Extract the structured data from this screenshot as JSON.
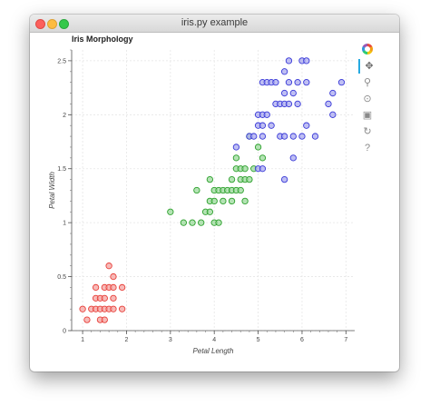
{
  "window": {
    "title": "iris.py example"
  },
  "plot": {
    "title": "Iris Morphology"
  },
  "toolbar": {
    "logo_icon": "bokeh-logo-icon",
    "tools": [
      {
        "name": "pan-tool",
        "glyph": "✥",
        "active": true
      },
      {
        "name": "box-zoom-tool",
        "glyph": "⚲",
        "active": false
      },
      {
        "name": "wheel-zoom-tool",
        "glyph": "⊙",
        "active": false
      },
      {
        "name": "save-tool",
        "glyph": "▣",
        "active": false
      },
      {
        "name": "reset-tool",
        "glyph": "↻",
        "active": false
      },
      {
        "name": "help-tool",
        "glyph": "?",
        "active": false
      }
    ]
  },
  "chart_data": {
    "type": "scatter",
    "xlabel": "Petal Length",
    "ylabel": "Petal Width",
    "xlim": [
      0.75,
      7.2
    ],
    "ylim": [
      0,
      2.6
    ],
    "x_ticks": [
      1,
      2,
      3,
      4,
      5,
      6,
      7
    ],
    "y_ticks": [
      0,
      0.5,
      1,
      1.5,
      2,
      2.5
    ],
    "x_tick_labels": [
      "1",
      "2",
      "3",
      "4",
      "5",
      "6",
      "7"
    ],
    "y_tick_labels": [
      "0",
      "0.5",
      "1",
      "1.5",
      "2",
      "2.5"
    ],
    "grid": true,
    "series": [
      {
        "color": "#e8403a",
        "fill": "#f4a3a0",
        "points": [
          [
            1.0,
            0.2
          ],
          [
            1.1,
            0.1
          ],
          [
            1.2,
            0.2
          ],
          [
            1.3,
            0.2
          ],
          [
            1.3,
            0.3
          ],
          [
            1.3,
            0.4
          ],
          [
            1.4,
            0.1
          ],
          [
            1.4,
            0.2
          ],
          [
            1.4,
            0.3
          ],
          [
            1.5,
            0.1
          ],
          [
            1.5,
            0.2
          ],
          [
            1.5,
            0.3
          ],
          [
            1.5,
            0.4
          ],
          [
            1.6,
            0.2
          ],
          [
            1.6,
            0.4
          ],
          [
            1.6,
            0.6
          ],
          [
            1.7,
            0.2
          ],
          [
            1.7,
            0.3
          ],
          [
            1.7,
            0.4
          ],
          [
            1.7,
            0.5
          ],
          [
            1.9,
            0.2
          ],
          [
            1.9,
            0.4
          ]
        ]
      },
      {
        "color": "#2ca02c",
        "fill": "#9bd99b",
        "points": [
          [
            3.0,
            1.1
          ],
          [
            3.3,
            1.0
          ],
          [
            3.5,
            1.0
          ],
          [
            3.6,
            1.3
          ],
          [
            3.7,
            1.0
          ],
          [
            3.8,
            1.1
          ],
          [
            3.9,
            1.1
          ],
          [
            3.9,
            1.2
          ],
          [
            3.9,
            1.4
          ],
          [
            4.0,
            1.0
          ],
          [
            4.0,
            1.2
          ],
          [
            4.0,
            1.3
          ],
          [
            4.1,
            1.0
          ],
          [
            4.1,
            1.3
          ],
          [
            4.2,
            1.2
          ],
          [
            4.2,
            1.3
          ],
          [
            4.3,
            1.3
          ],
          [
            4.4,
            1.2
          ],
          [
            4.4,
            1.3
          ],
          [
            4.4,
            1.4
          ],
          [
            4.5,
            1.3
          ],
          [
            4.5,
            1.5
          ],
          [
            4.5,
            1.6
          ],
          [
            4.6,
            1.3
          ],
          [
            4.6,
            1.4
          ],
          [
            4.6,
            1.5
          ],
          [
            4.7,
            1.2
          ],
          [
            4.7,
            1.4
          ],
          [
            4.7,
            1.5
          ],
          [
            4.8,
            1.4
          ],
          [
            4.8,
            1.8
          ],
          [
            4.9,
            1.5
          ],
          [
            5.0,
            1.7
          ],
          [
            5.1,
            1.6
          ]
        ]
      },
      {
        "color": "#3a3ad8",
        "fill": "#a9a9ef",
        "points": [
          [
            4.5,
            1.7
          ],
          [
            4.8,
            1.8
          ],
          [
            4.9,
            1.8
          ],
          [
            5.0,
            1.5
          ],
          [
            5.0,
            1.9
          ],
          [
            5.0,
            2.0
          ],
          [
            5.1,
            1.5
          ],
          [
            5.1,
            1.8
          ],
          [
            5.1,
            1.9
          ],
          [
            5.1,
            2.0
          ],
          [
            5.1,
            2.3
          ],
          [
            5.2,
            2.0
          ],
          [
            5.2,
            2.3
          ],
          [
            5.3,
            1.9
          ],
          [
            5.3,
            2.3
          ],
          [
            5.4,
            2.1
          ],
          [
            5.4,
            2.3
          ],
          [
            5.5,
            1.8
          ],
          [
            5.5,
            2.1
          ],
          [
            5.6,
            1.4
          ],
          [
            5.6,
            1.8
          ],
          [
            5.6,
            2.1
          ],
          [
            5.6,
            2.2
          ],
          [
            5.6,
            2.4
          ],
          [
            5.7,
            2.1
          ],
          [
            5.7,
            2.3
          ],
          [
            5.7,
            2.5
          ],
          [
            5.8,
            1.6
          ],
          [
            5.8,
            1.8
          ],
          [
            5.8,
            2.2
          ],
          [
            5.9,
            2.1
          ],
          [
            5.9,
            2.3
          ],
          [
            6.0,
            1.8
          ],
          [
            6.0,
            2.5
          ],
          [
            6.1,
            1.9
          ],
          [
            6.1,
            2.3
          ],
          [
            6.1,
            2.5
          ],
          [
            6.3,
            1.8
          ],
          [
            6.6,
            2.1
          ],
          [
            6.7,
            2.0
          ],
          [
            6.7,
            2.2
          ],
          [
            6.9,
            2.3
          ]
        ]
      }
    ]
  }
}
